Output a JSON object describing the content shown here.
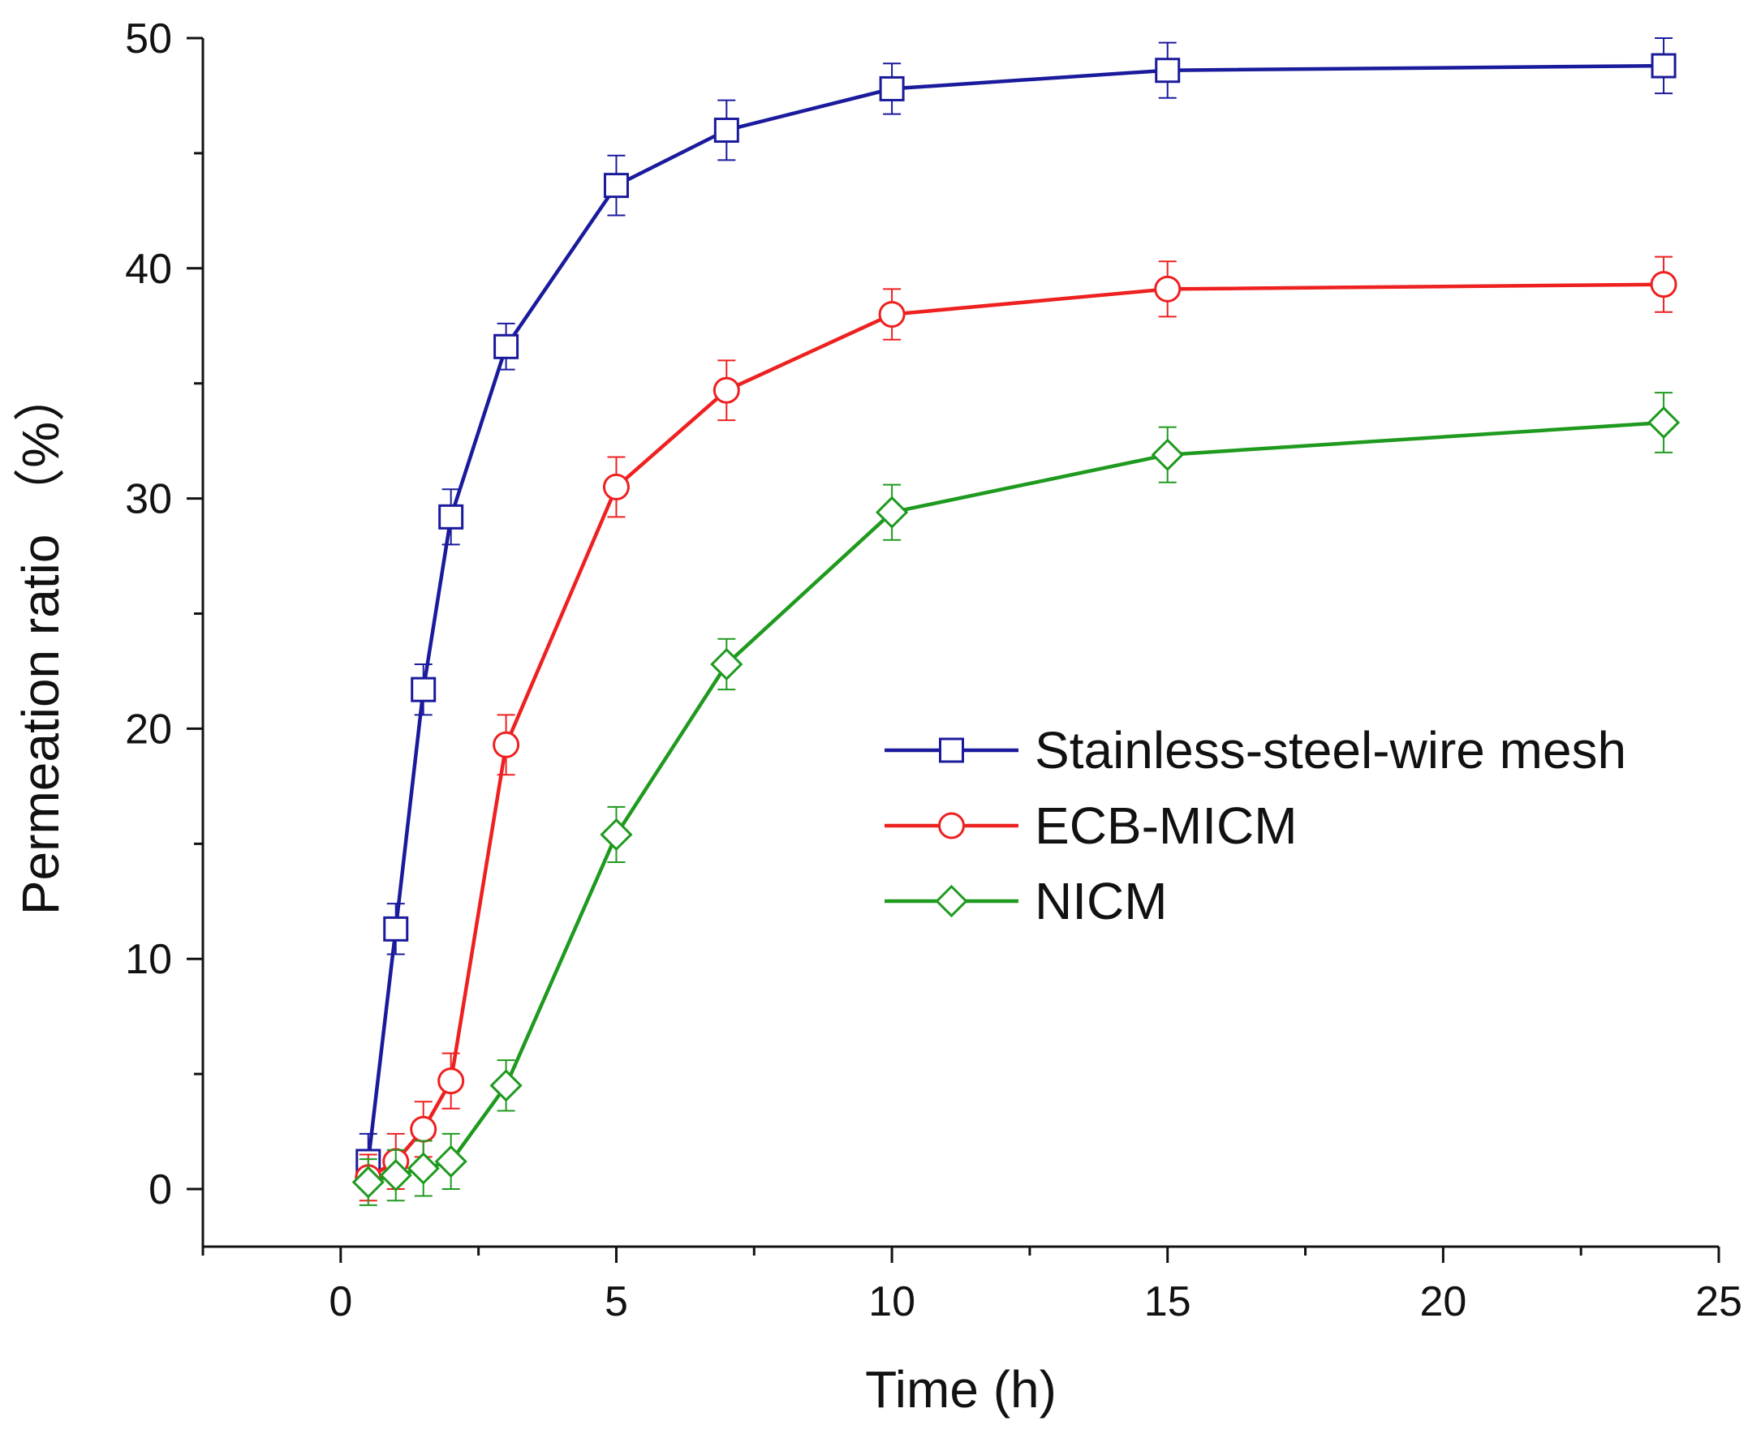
{
  "chart_data": {
    "type": "line",
    "xlabel": "Time (h)",
    "ylabel": "Permeation ratio （%）",
    "xlim": [
      -2.5,
      25
    ],
    "ylim": [
      -2.5,
      50
    ],
    "xticks": [
      0,
      5,
      10,
      15,
      20,
      25
    ],
    "yticks": [
      0,
      10,
      20,
      30,
      40,
      50
    ],
    "grid": false,
    "legend_position": "center-right",
    "series": [
      {
        "name": "Stainless-steel-wire mesh",
        "color": "#1a1a9c",
        "marker": "square",
        "x": [
          0.5,
          1,
          1.5,
          2,
          3,
          5,
          7,
          10,
          15,
          24
        ],
        "y": [
          1.2,
          11.3,
          21.7,
          29.2,
          36.6,
          43.6,
          46.0,
          47.8,
          48.6,
          48.8
        ],
        "error": [
          1.2,
          1.1,
          1.1,
          1.2,
          1.0,
          1.3,
          1.3,
          1.1,
          1.2,
          1.2
        ]
      },
      {
        "name": "ECB-MICM",
        "color": "#ee2020",
        "marker": "circle",
        "x": [
          0.5,
          1,
          1.5,
          2,
          3,
          5,
          7,
          10,
          15,
          24
        ],
        "y": [
          0.5,
          1.2,
          2.6,
          4.7,
          19.3,
          30.5,
          34.7,
          38.0,
          39.1,
          39.3
        ],
        "error": [
          1.0,
          1.2,
          1.2,
          1.2,
          1.3,
          1.3,
          1.3,
          1.1,
          1.2,
          1.2
        ]
      },
      {
        "name": "NICM",
        "color": "#1e9a1e",
        "marker": "diamond",
        "x": [
          0.5,
          1,
          1.5,
          2,
          3,
          5,
          7,
          10,
          15,
          24
        ],
        "y": [
          0.3,
          0.6,
          0.9,
          1.2,
          4.5,
          15.4,
          22.8,
          29.4,
          31.9,
          33.3
        ],
        "error": [
          1.0,
          1.1,
          1.2,
          1.2,
          1.1,
          1.2,
          1.1,
          1.2,
          1.2,
          1.3
        ]
      }
    ]
  }
}
